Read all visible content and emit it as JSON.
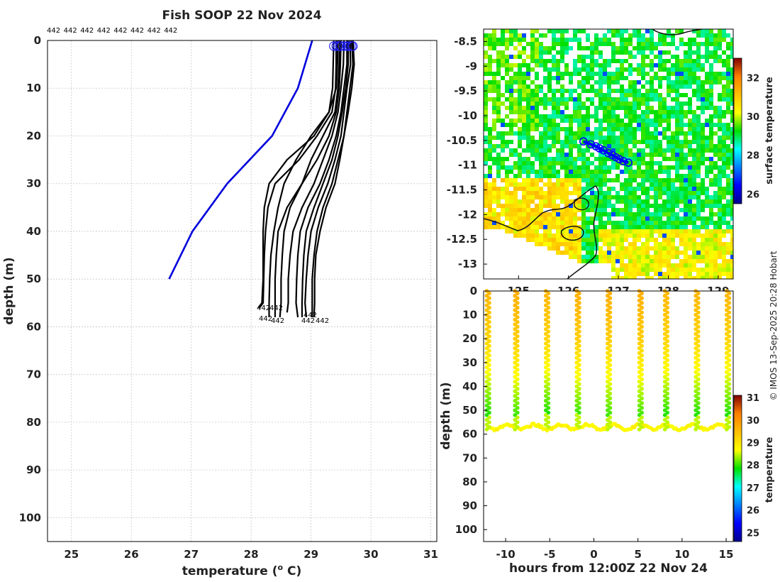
{
  "title": "Fish SOOP 22 Nov 2024",
  "credit": "© IMOS 13-Sep-2025 20:28 Hobart",
  "chart_data": [
    {
      "type": "line",
      "name": "profiles",
      "title": "Fish SOOP 22 Nov 2024",
      "xlabel": "temperature (° C)",
      "xlabel_main": "temperature (",
      "xlabel_sup": "o",
      "xlabel_tail": " C)",
      "ylabel": "depth (m)",
      "xlim": [
        24.6,
        31.1
      ],
      "ylim": [
        105,
        0
      ],
      "xticks": [
        25,
        26,
        27,
        28,
        29,
        30,
        31
      ],
      "yticks": [
        0,
        10,
        20,
        30,
        40,
        50,
        60,
        70,
        80,
        90,
        100
      ],
      "top_labels": [
        "442",
        "442",
        "442",
        "442",
        "442",
        "442",
        "442",
        "442"
      ],
      "bottom_labels": [
        "442",
        "442",
        "442",
        "442",
        "442",
        "442",
        "442"
      ],
      "climatology": {
        "color": "#0000dd",
        "depth": [
          0,
          10,
          20,
          30,
          40,
          50
        ],
        "temp": [
          29.02,
          28.78,
          28.35,
          27.6,
          27.02,
          26.63
        ]
      },
      "profile_color": "#000000",
      "profiles": [
        {
          "bottom": 56,
          "depth": [
            0,
            5,
            10,
            15,
            20,
            25,
            30,
            35,
            40,
            45,
            50,
            55,
            56
          ],
          "temp": [
            29.38,
            29.37,
            29.36,
            29.3,
            29.05,
            28.6,
            28.3,
            28.22,
            28.2,
            28.2,
            28.2,
            28.18,
            28.12
          ]
        },
        {
          "bottom": 56,
          "depth": [
            0,
            5,
            10,
            15,
            20,
            25,
            30,
            35,
            40,
            45,
            50,
            55,
            56
          ],
          "temp": [
            29.42,
            29.42,
            29.41,
            29.35,
            29.1,
            28.8,
            28.4,
            28.28,
            28.24,
            28.22,
            28.21,
            28.2,
            28.14
          ]
        },
        {
          "bottom": 58,
          "depth": [
            0,
            5,
            10,
            15,
            20,
            25,
            30,
            35,
            40,
            45,
            50,
            55,
            58
          ],
          "temp": [
            29.45,
            29.44,
            29.42,
            29.3,
            29.0,
            28.75,
            28.55,
            28.45,
            28.38,
            28.33,
            28.31,
            28.3,
            28.3
          ]
        },
        {
          "bottom": 58,
          "depth": [
            0,
            5,
            10,
            15,
            20,
            25,
            30,
            35,
            40,
            45,
            50,
            55,
            58
          ],
          "temp": [
            29.48,
            29.47,
            29.45,
            29.4,
            29.2,
            29.0,
            28.85,
            28.6,
            28.45,
            28.42,
            28.4,
            28.4,
            28.4
          ]
        },
        {
          "bottom": 58,
          "depth": [
            0,
            5,
            10,
            15,
            20,
            25,
            30,
            35,
            40,
            45,
            50,
            55,
            58
          ],
          "temp": [
            29.5,
            29.49,
            29.47,
            29.42,
            29.3,
            29.1,
            28.85,
            28.65,
            28.55,
            28.52,
            28.5,
            28.5,
            28.48
          ]
        },
        {
          "bottom": 57,
          "depth": [
            0,
            5,
            10,
            15,
            20,
            25,
            30,
            35,
            40,
            45,
            50,
            55,
            57
          ],
          "temp": [
            29.55,
            29.54,
            29.5,
            29.45,
            29.35,
            29.2,
            29.05,
            28.85,
            28.7,
            28.65,
            28.62,
            28.62,
            28.6
          ]
        },
        {
          "bottom": 58,
          "depth": [
            0,
            5,
            10,
            15,
            20,
            25,
            30,
            35,
            40,
            45,
            50,
            55,
            58
          ],
          "temp": [
            29.6,
            29.6,
            29.55,
            29.5,
            29.42,
            29.3,
            29.15,
            28.95,
            28.82,
            28.78,
            28.76,
            28.75,
            28.78
          ]
        },
        {
          "bottom": 58,
          "depth": [
            0,
            5,
            10,
            15,
            20,
            25,
            30,
            35,
            40,
            45,
            50,
            55,
            58
          ],
          "temp": [
            29.62,
            29.62,
            29.58,
            29.52,
            29.45,
            29.35,
            29.2,
            29.05,
            28.92,
            28.88,
            28.86,
            28.85,
            28.85
          ]
        },
        {
          "bottom": 58,
          "depth": [
            0,
            5,
            10,
            15,
            20,
            25,
            30,
            35,
            40,
            45,
            50,
            55,
            58
          ],
          "temp": [
            29.65,
            29.66,
            29.6,
            29.55,
            29.5,
            29.4,
            29.28,
            29.12,
            29.0,
            28.95,
            28.92,
            28.9,
            28.92
          ]
        },
        {
          "bottom": 58,
          "depth": [
            0,
            5,
            10,
            15,
            20,
            25,
            30,
            35,
            40,
            45,
            50,
            55,
            58
          ],
          "temp": [
            29.68,
            29.7,
            29.65,
            29.6,
            29.55,
            29.45,
            29.35,
            29.2,
            29.1,
            29.05,
            29.02,
            29.02,
            29.02
          ]
        },
        {
          "bottom": 58,
          "depth": [
            0,
            5,
            10,
            15,
            20,
            25,
            30,
            35,
            40,
            45,
            50,
            55,
            58
          ],
          "temp": [
            29.7,
            29.72,
            29.68,
            29.62,
            29.55,
            29.48,
            29.4,
            29.25,
            29.15,
            29.08,
            29.06,
            29.06,
            29.05
          ]
        }
      ]
    },
    {
      "type": "heatmap",
      "name": "map",
      "colorbar_label": "surface temperature",
      "xlim": [
        124.3,
        129.3
      ],
      "ylim": [
        -13.3,
        -8.25
      ],
      "xticks": [
        125,
        126,
        127,
        128,
        129
      ],
      "yticks": [
        -8.5,
        -9,
        -9.5,
        -10,
        -10.5,
        -11,
        -11.5,
        -12,
        -12.5,
        -13
      ],
      "ytick_labels": [
        "-8.5",
        "-9",
        "-9.5",
        "-10",
        "-10.5",
        "-11",
        "-11.5",
        "-12",
        "-12.5",
        "-13"
      ],
      "clim": [
        25.5,
        33
      ],
      "cbar_ticks": [
        26,
        28,
        30,
        32
      ],
      "track": {
        "color": "#0000ff",
        "lon": [
          126.3,
          126.45,
          126.55,
          126.62,
          126.7,
          126.8,
          126.88,
          126.95,
          127.02,
          127.1,
          127.2
        ],
        "lat": [
          -10.52,
          -10.58,
          -10.62,
          -10.66,
          -10.7,
          -10.76,
          -10.8,
          -10.84,
          -10.88,
          -10.92,
          -10.95
        ]
      }
    },
    {
      "type": "scatter",
      "name": "section",
      "xlabel": "hours from 12:00Z 22 Nov 24",
      "ylabel": "depth (m)",
      "colorbar_label": "temperature",
      "xlim": [
        -12.5,
        15.8
      ],
      "ylim": [
        105,
        0
      ],
      "xticks": [
        -10,
        -5,
        0,
        5,
        10,
        15
      ],
      "yticks": [
        0,
        10,
        20,
        30,
        40,
        50,
        60,
        70,
        80,
        90,
        100
      ],
      "clim": [
        24.6,
        31.1
      ],
      "cbar_ticks": [
        25,
        26,
        27,
        28,
        29,
        30,
        31
      ],
      "casts": [
        {
          "hour": -12.0,
          "bottom": 58,
          "sst": 29.6
        },
        {
          "hour": -8.8,
          "bottom": 58,
          "sst": 29.7
        },
        {
          "hour": -5.3,
          "bottom": 57,
          "sst": 29.6
        },
        {
          "hour": -1.8,
          "bottom": 57,
          "sst": 29.7
        },
        {
          "hour": 1.7,
          "bottom": 58,
          "sst": 29.7
        },
        {
          "hour": 5.3,
          "bottom": 58,
          "sst": 29.7
        },
        {
          "hour": 8.2,
          "bottom": 58,
          "sst": 29.6
        },
        {
          "hour": 11.7,
          "bottom": 58,
          "sst": 29.6
        },
        {
          "hour": 15.2,
          "bottom": 58,
          "sst": 29.6
        }
      ]
    }
  ]
}
